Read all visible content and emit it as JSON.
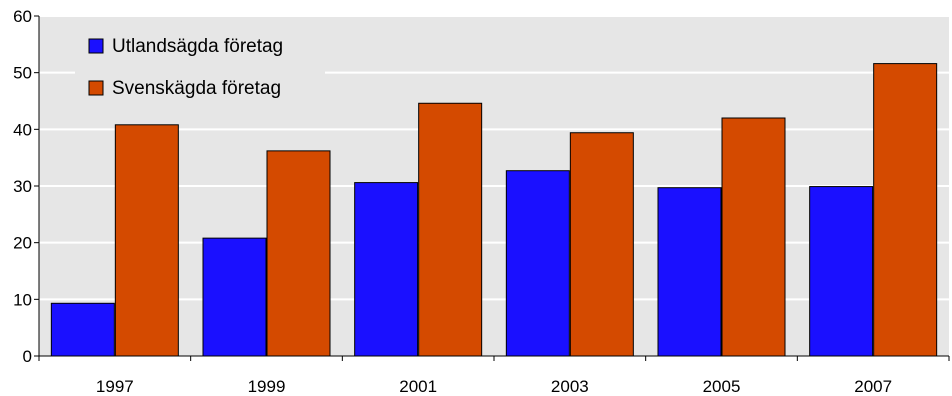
{
  "chart_data": {
    "type": "bar",
    "title": "",
    "xlabel": "",
    "ylabel": "",
    "categories": [
      "1997",
      "1999",
      "2001",
      "2003",
      "2005",
      "2007"
    ],
    "series": [
      {
        "name": "Utlandsägda företag",
        "values": [
          9.3,
          20.8,
          30.6,
          32.7,
          29.7,
          29.9
        ]
      },
      {
        "name": "Svenskägda företag",
        "values": [
          40.8,
          36.2,
          44.6,
          39.4,
          42.0,
          51.6
        ]
      }
    ],
    "ylim": [
      0,
      60
    ],
    "yticks": [
      0,
      10,
      20,
      30,
      40,
      50,
      60
    ],
    "grid": "horizontal",
    "legend_position": "top-left",
    "colors": {
      "series": [
        "#1a10ff",
        "#d44a00"
      ],
      "plot_background": "#e6e6e6",
      "gridline": "#ffffff"
    }
  }
}
